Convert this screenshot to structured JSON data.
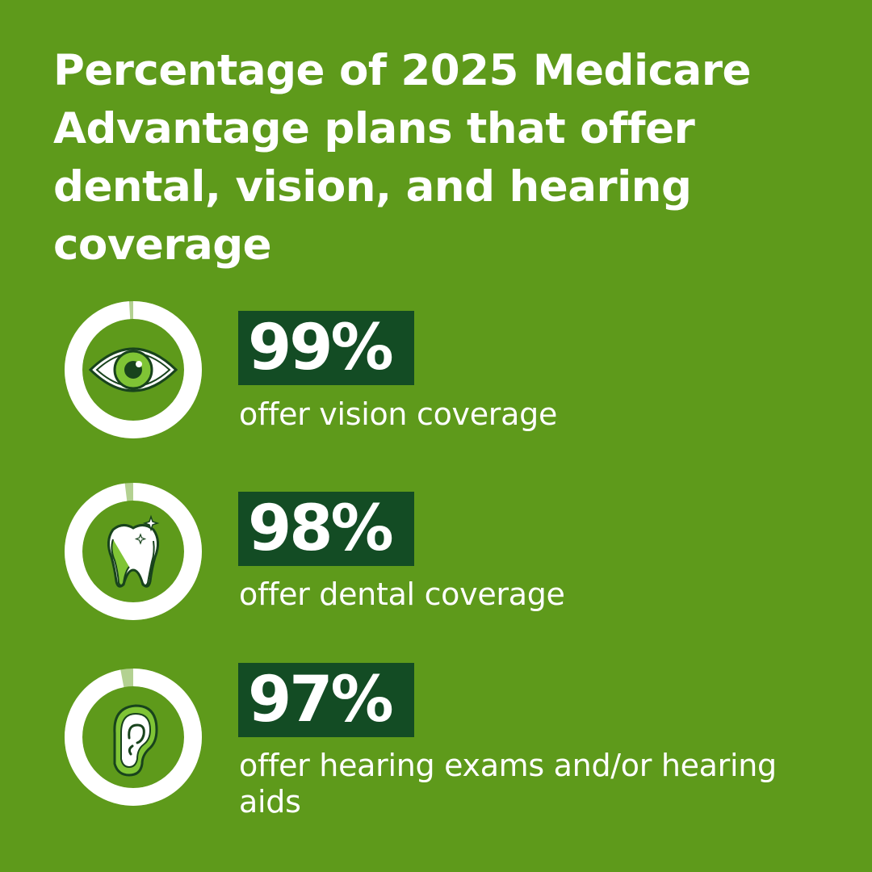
{
  "title": "Percentage of 2025 Medicare Advantage plans that offer dental, vision, and hearing coverage",
  "colors": {
    "background": "#5e9a1b",
    "value_box": "#134c24",
    "ring_fill": "#ffffff",
    "ring_remainder": "#b3d191",
    "icon_accent": "#7fc435",
    "icon_dark": "#18431c"
  },
  "chart_data": {
    "type": "pie",
    "title": "Percentage of 2025 Medicare Advantage plans that offer dental, vision, and hearing coverage",
    "unit": "%",
    "items": [
      {
        "value": 99,
        "value_label": "99%",
        "label": "offer vision coverage",
        "icon": "eye-icon"
      },
      {
        "value": 98,
        "value_label": "98%",
        "label": "offer dental coverage",
        "icon": "tooth-icon"
      },
      {
        "value": 97,
        "value_label": "97%",
        "label": "offer hearing exams and/or hearing aids",
        "icon": "ear-icon"
      }
    ]
  }
}
